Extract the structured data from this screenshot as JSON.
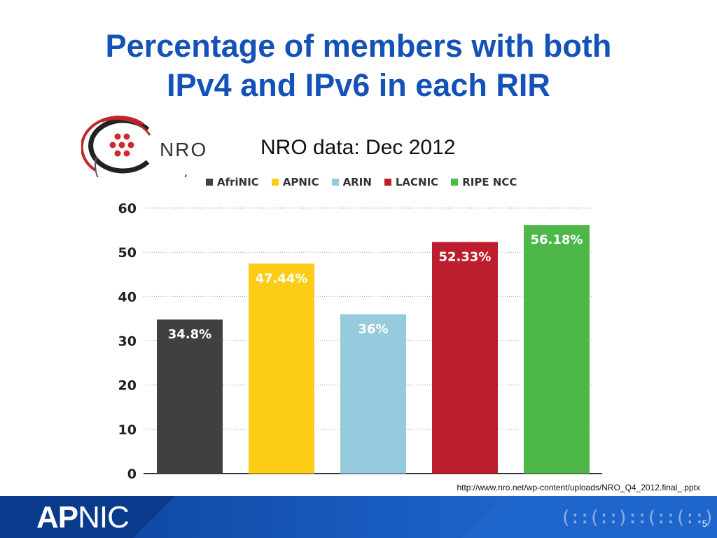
{
  "slide": {
    "title_line1": "Percentage of members with both",
    "title_line2": "IPv4 and IPv6 in each RIR",
    "subtitle": "NRO data: Dec 2012",
    "logo_text": "NRO",
    "source_url": "http://www.nro.net/wp-content/uploads/NRO_Q4_2012.final_.pptx",
    "page_number": "5",
    "footer_logo_bold": "AP",
    "footer_logo_light": "NIC",
    "footer_decoration": "(::(::)::(::(::)"
  },
  "colors": {
    "title": "#1452b8",
    "AfriNIC": "#404040",
    "APNIC": "#fccd14",
    "ARIN": "#95cbdd",
    "LACNIC": "#bd1e2d",
    "RIPE NCC": "#4db848"
  },
  "chart_data": {
    "type": "bar",
    "title": "NRO data: Dec 2012",
    "categories": [
      "AfriNIC",
      "APNIC",
      "ARIN",
      "LACNIC",
      "RIPE NCC"
    ],
    "values": [
      34.8,
      47.44,
      36,
      52.33,
      56.18
    ],
    "data_labels": [
      "34.8%",
      "47.44%",
      "36%",
      "52.33%",
      "56.18%"
    ],
    "colors": [
      "#404040",
      "#fccd14",
      "#95cbdd",
      "#bd1e2d",
      "#4db848"
    ],
    "ylim": [
      0,
      60
    ],
    "yticks": [
      0,
      10,
      20,
      30,
      40,
      50,
      60
    ],
    "grid": true,
    "legend": "top",
    "xlabel": "",
    "ylabel": ""
  }
}
